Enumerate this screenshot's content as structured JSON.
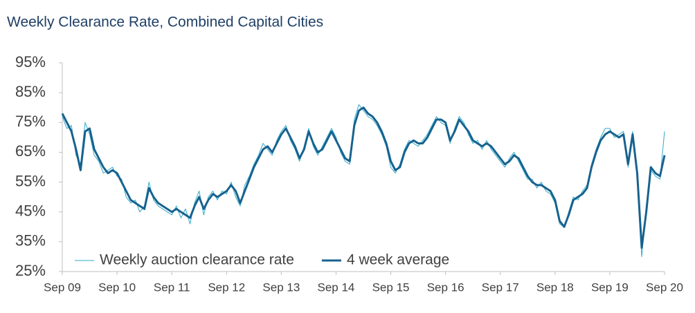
{
  "chart_data": {
    "type": "line",
    "title": "Weekly Clearance Rate, Combined Capital Cities",
    "categories": [
      "Sep 09",
      null,
      null,
      null,
      null,
      null,
      null,
      null,
      null,
      null,
      null,
      null,
      "Sep 10",
      null,
      null,
      null,
      null,
      null,
      null,
      null,
      null,
      null,
      null,
      null,
      "Sep 11",
      null,
      null,
      null,
      null,
      null,
      null,
      null,
      null,
      null,
      null,
      null,
      "Sep 12",
      null,
      null,
      null,
      null,
      null,
      null,
      null,
      null,
      null,
      null,
      null,
      "Sep 13",
      null,
      null,
      null,
      null,
      null,
      null,
      null,
      null,
      null,
      null,
      null,
      "Sep 14",
      null,
      null,
      null,
      null,
      null,
      null,
      null,
      null,
      null,
      null,
      null,
      "Sep 15",
      null,
      null,
      null,
      null,
      null,
      null,
      null,
      null,
      null,
      null,
      null,
      "Sep 16",
      null,
      null,
      null,
      null,
      null,
      null,
      null,
      null,
      null,
      null,
      null,
      "Sep 17",
      null,
      null,
      null,
      null,
      null,
      null,
      null,
      null,
      null,
      null,
      null,
      "Sep 18",
      null,
      null,
      null,
      null,
      null,
      null,
      null,
      null,
      null,
      null,
      null,
      "Sep 19",
      null,
      null,
      null,
      null,
      null,
      null,
      null,
      null,
      null,
      null,
      null,
      "Sep 20"
    ],
    "series": [
      {
        "name": "Weekly auction clearance rate",
        "color": "#2ea8c8",
        "width": 1,
        "values": [
          77,
          73,
          74,
          64,
          61,
          75,
          71,
          64,
          62,
          58,
          59,
          60,
          57,
          56,
          50,
          48,
          49,
          45,
          47,
          55,
          49,
          47,
          46,
          45,
          44,
          47,
          43,
          46,
          41,
          48,
          52,
          44,
          50,
          52,
          49,
          52,
          51,
          55,
          50,
          47,
          54,
          57,
          61,
          64,
          68,
          66,
          64,
          69,
          72,
          74,
          69,
          66,
          62,
          67,
          73,
          67,
          64,
          67,
          70,
          73,
          70,
          65,
          62,
          61,
          76,
          81,
          79,
          77,
          76,
          74,
          71,
          67,
          60,
          58,
          61,
          66,
          69,
          68,
          67,
          69,
          71,
          74,
          77,
          75,
          74,
          68,
          73,
          77,
          75,
          71,
          68,
          69,
          66,
          69,
          66,
          64,
          62,
          60,
          63,
          65,
          62,
          59,
          56,
          56,
          53,
          55,
          52,
          51,
          48,
          41,
          40,
          45,
          50,
          49,
          52,
          54,
          61,
          66,
          70,
          73,
          73,
          70,
          71,
          72,
          60,
          72,
          56,
          30,
          47,
          59,
          57,
          56,
          72
        ]
      },
      {
        "name": "4 week average",
        "color": "#17628f",
        "width": 3,
        "values": [
          78,
          75,
          72,
          66,
          59,
          72,
          73,
          66,
          63,
          60,
          58,
          59,
          58,
          55,
          52,
          49,
          48,
          47,
          46,
          53,
          50,
          48,
          47,
          46,
          45,
          46,
          45,
          44,
          43,
          47,
          50,
          46,
          49,
          51,
          50,
          51,
          52,
          54,
          52,
          48,
          52,
          56,
          60,
          63,
          66,
          67,
          65,
          68,
          71,
          73,
          70,
          67,
          63,
          66,
          72,
          68,
          65,
          66,
          69,
          72,
          69,
          66,
          63,
          62,
          74,
          79,
          80,
          78,
          77,
          75,
          72,
          68,
          62,
          59,
          60,
          65,
          68,
          69,
          68,
          68,
          70,
          73,
          76,
          76,
          75,
          69,
          72,
          76,
          74,
          72,
          69,
          68,
          67,
          68,
          67,
          65,
          63,
          61,
          62,
          64,
          63,
          60,
          57,
          55,
          54,
          54,
          53,
          52,
          49,
          42,
          40,
          44,
          49,
          50,
          51,
          53,
          60,
          65,
          69,
          71,
          72,
          71,
          70,
          71,
          61,
          71,
          58,
          33,
          45,
          60,
          58,
          57,
          64
        ]
      }
    ],
    "ylim": [
      25,
      95
    ],
    "yticks": [
      {
        "value": 25,
        "label": "25%"
      },
      {
        "value": 35,
        "label": "35%"
      },
      {
        "value": 45,
        "label": "45%"
      },
      {
        "value": 55,
        "label": "55%"
      },
      {
        "value": 65,
        "label": "65%"
      },
      {
        "value": 75,
        "label": "75%"
      },
      {
        "value": 85,
        "label": "85%"
      },
      {
        "value": 95,
        "label": "95%"
      }
    ],
    "legend": "bottom-left"
  }
}
